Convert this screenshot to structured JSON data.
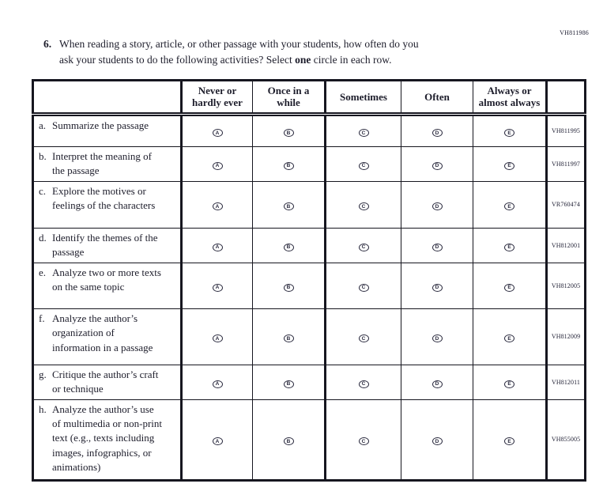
{
  "page": {
    "top_right_code": "VH811986"
  },
  "question": {
    "number": "6.",
    "line1": "When reading a story, article, or other passage with your students, how often do you",
    "line2_before_bold": "ask your students to do the following activities? Select ",
    "bold_word": "one",
    "line2_after_bold": " circle in each row."
  },
  "table": {
    "columns": [
      "Never or hardly ever",
      "Once in a while",
      "Sometimes",
      "Often",
      "Always or almost always"
    ],
    "options": [
      "A",
      "B",
      "C",
      "D",
      "E"
    ],
    "rows": [
      {
        "letter": "a.",
        "text": "Summarize the passage",
        "code": "VH811995"
      },
      {
        "letter": "b.",
        "text": "Interpret the meaning of the passage",
        "code": "VH811997"
      },
      {
        "letter": "c.",
        "text": "Explore the motives or feelings of the characters",
        "code": "VR760474"
      },
      {
        "letter": "d.",
        "text": "Identify the themes of the passage",
        "code": "VH812001"
      },
      {
        "letter": "e.",
        "text": "Analyze two or more texts on the same topic",
        "code": "VH812005"
      },
      {
        "letter": "f.",
        "text": "Analyze the author’s organization of information in a passage",
        "code": "VH812009"
      },
      {
        "letter": "g.",
        "text": "Critique the author’s craft or technique",
        "code": "VH812011"
      },
      {
        "letter": "h.",
        "text": "Analyze the author’s use of multimedia or non-print text (e.g., texts including images, infographics, or animations)",
        "code": "VH855005"
      }
    ]
  }
}
